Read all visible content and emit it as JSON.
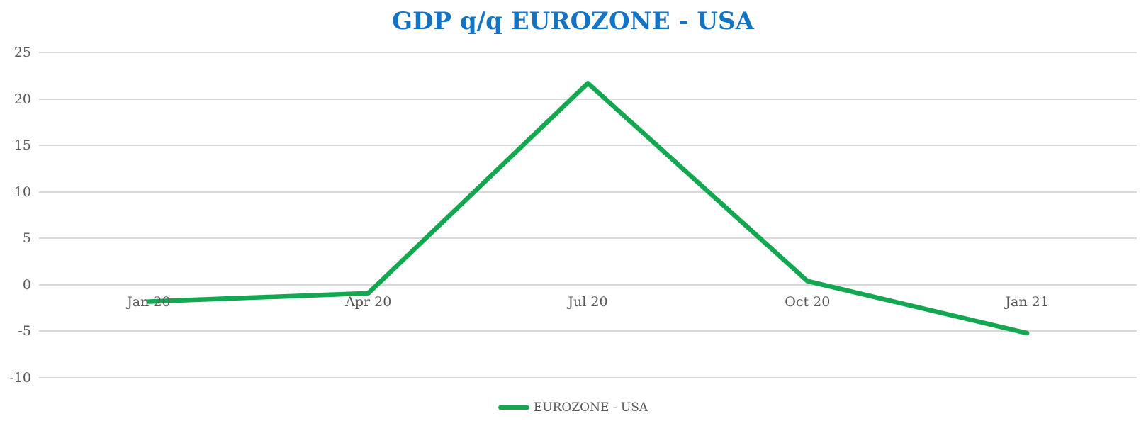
{
  "chart_data": {
    "type": "line",
    "title": "GDP q/q EUROZONE - USA",
    "categories": [
      "Jan 20",
      "Apr 20",
      "Jul 20",
      "Oct 20",
      "Jan 21"
    ],
    "series": [
      {
        "name": "EUROZONE - USA",
        "values": [
          -1.8,
          -0.9,
          21.7,
          0.4,
          -5.2
        ]
      }
    ],
    "xlabel": "",
    "ylabel": "",
    "ylim": [
      -10,
      25
    ],
    "yticks": [
      25,
      20,
      15,
      10,
      5,
      0,
      -5,
      -10
    ],
    "grid": true,
    "legend_position": "bottom",
    "x_labels_position": "at-zero-line",
    "colors": {
      "series": "#12a750",
      "title": "#1373c4",
      "axis_labels": "#595959",
      "gridlines": "#d9d9d9",
      "background": "#ffffff"
    }
  }
}
